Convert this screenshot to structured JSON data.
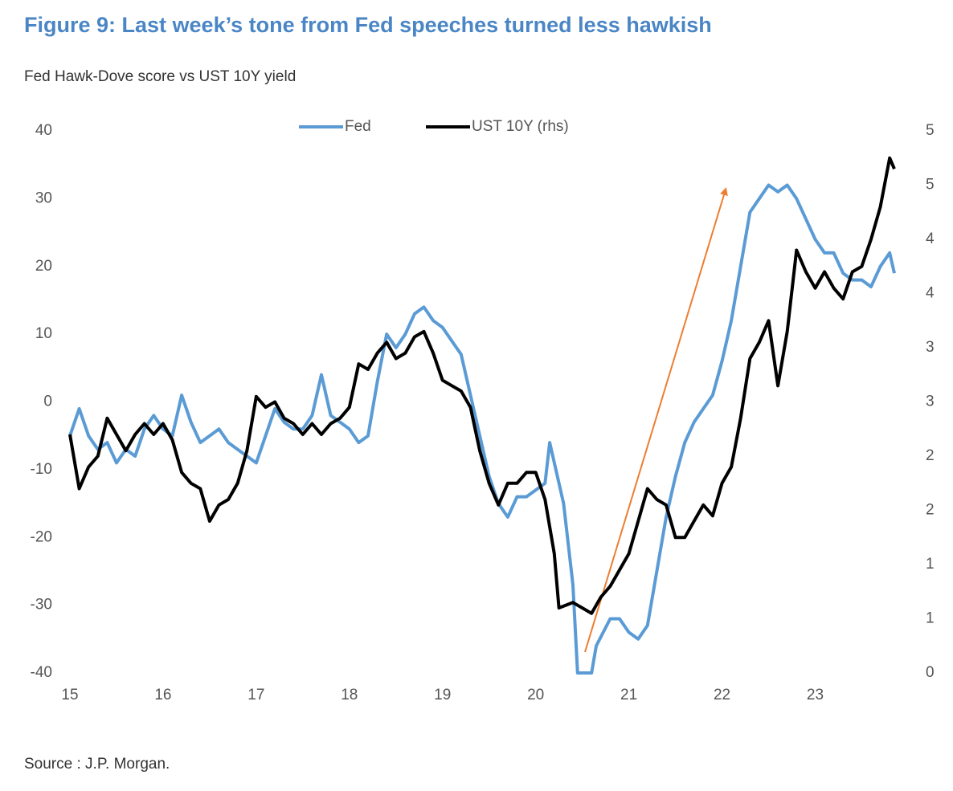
{
  "chart_data": {
    "type": "line",
    "title": "Figure 9: Last week’s tone from Fed speeches turned less hawkish",
    "subtitle": "Fed Hawk-Dove score vs UST 10Y yield",
    "source": "Source : J.P. Morgan.",
    "xlim": [
      15,
      23.85
    ],
    "xticks": [
      15,
      16,
      17,
      18,
      19,
      20,
      21,
      22,
      23
    ],
    "ylim": [
      -40,
      40
    ],
    "yticks": [
      -40,
      -30,
      -20,
      -10,
      0,
      10,
      20,
      30,
      40
    ],
    "y2lim": [
      0,
      5
    ],
    "y2ticks": [
      0,
      {
        "value": 0.5,
        "label": "1"
      },
      1,
      {
        "value": 1.5,
        "label": "2"
      },
      2,
      {
        "value": 2.5,
        "label": "3"
      },
      3,
      {
        "value": 3.5,
        "label": "4"
      },
      4,
      {
        "value": 4.5,
        "label": "5"
      },
      5
    ],
    "legend": "top",
    "series": [
      {
        "name": "Fed",
        "color": "#5b9bd5",
        "x": [
          15.0,
          15.1,
          15.2,
          15.3,
          15.4,
          15.5,
          15.6,
          15.7,
          15.8,
          15.9,
          16.0,
          16.1,
          16.2,
          16.3,
          16.4,
          16.5,
          16.6,
          16.7,
          16.8,
          16.9,
          17.0,
          17.1,
          17.2,
          17.3,
          17.4,
          17.5,
          17.6,
          17.7,
          17.8,
          17.9,
          18.0,
          18.1,
          18.2,
          18.3,
          18.4,
          18.5,
          18.6,
          18.7,
          18.8,
          18.9,
          19.0,
          19.1,
          19.2,
          19.3,
          19.4,
          19.5,
          19.6,
          19.7,
          19.8,
          19.9,
          20.0,
          20.1,
          20.15,
          20.3,
          20.4,
          20.45,
          20.6,
          20.65,
          20.8,
          20.9,
          21.0,
          21.1,
          21.2,
          21.3,
          21.4,
          21.5,
          21.6,
          21.7,
          21.8,
          21.9,
          22.0,
          22.1,
          22.2,
          22.3,
          22.4,
          22.5,
          22.6,
          22.7,
          22.8,
          22.9,
          23.0,
          23.1,
          23.2,
          23.3,
          23.4,
          23.5,
          23.6,
          23.7,
          23.8,
          23.85
        ],
        "values": [
          -5,
          -1,
          -5,
          -7,
          -6,
          -9,
          -7,
          -8,
          -4,
          -2,
          -4,
          -5,
          1,
          -3,
          -6,
          -5,
          -4,
          -6,
          -7,
          -8,
          -9,
          -5,
          -1,
          -3,
          -4,
          -4,
          -2,
          4,
          -2,
          -3,
          -4,
          -6,
          -5,
          3,
          10,
          8,
          10,
          13,
          14,
          12,
          11,
          9,
          7,
          1,
          -5,
          -11,
          -15,
          -17,
          -14,
          -14,
          -13,
          -12,
          -6,
          -15,
          -27,
          -40,
          -40,
          -36,
          -32,
          -32,
          -34,
          -35,
          -33,
          -25,
          -17,
          -11,
          -6,
          -3,
          -1,
          1,
          6,
          12,
          20,
          28,
          30,
          32,
          31,
          32,
          30,
          27,
          24,
          22,
          22,
          19,
          18,
          18,
          17,
          20,
          22,
          19
        ]
      },
      {
        "name": "UST 10Y (rhs)",
        "color": "#000000",
        "axis": "y2",
        "x": [
          15.0,
          15.1,
          15.2,
          15.3,
          15.4,
          15.5,
          15.6,
          15.7,
          15.8,
          15.9,
          16.0,
          16.1,
          16.2,
          16.3,
          16.4,
          16.5,
          16.6,
          16.7,
          16.8,
          16.9,
          17.0,
          17.1,
          17.2,
          17.3,
          17.4,
          17.5,
          17.6,
          17.7,
          17.8,
          17.9,
          18.0,
          18.1,
          18.2,
          18.3,
          18.4,
          18.5,
          18.6,
          18.7,
          18.8,
          18.9,
          19.0,
          19.1,
          19.2,
          19.3,
          19.4,
          19.5,
          19.6,
          19.7,
          19.8,
          19.9,
          20.0,
          20.1,
          20.2,
          20.25,
          20.4,
          20.5,
          20.6,
          20.7,
          20.8,
          20.9,
          21.0,
          21.1,
          21.2,
          21.3,
          21.4,
          21.5,
          21.6,
          21.7,
          21.8,
          21.9,
          22.0,
          22.1,
          22.2,
          22.3,
          22.4,
          22.5,
          22.6,
          22.7,
          22.8,
          22.9,
          23.0,
          23.1,
          23.2,
          23.3,
          23.4,
          23.5,
          23.6,
          23.7,
          23.8,
          23.85
        ],
        "values": [
          2.2,
          1.7,
          1.9,
          2.0,
          2.35,
          2.2,
          2.05,
          2.2,
          2.3,
          2.2,
          2.3,
          2.15,
          1.85,
          1.75,
          1.7,
          1.4,
          1.55,
          1.6,
          1.75,
          2.05,
          2.55,
          2.45,
          2.5,
          2.35,
          2.3,
          2.2,
          2.3,
          2.2,
          2.3,
          2.35,
          2.45,
          2.85,
          2.8,
          2.95,
          3.05,
          2.9,
          2.95,
          3.1,
          3.15,
          2.95,
          2.7,
          2.65,
          2.6,
          2.45,
          2.05,
          1.75,
          1.55,
          1.75,
          1.75,
          1.85,
          1.85,
          1.6,
          1.1,
          0.6,
          0.65,
          0.6,
          0.55,
          0.7,
          0.8,
          0.95,
          1.1,
          1.4,
          1.7,
          1.6,
          1.55,
          1.25,
          1.25,
          1.4,
          1.55,
          1.45,
          1.75,
          1.9,
          2.35,
          2.9,
          3.05,
          3.25,
          2.65,
          3.15,
          3.9,
          3.7,
          3.55,
          3.7,
          3.55,
          3.45,
          3.7,
          3.75,
          4.0,
          4.3,
          4.75,
          4.65
        ]
      }
    ]
  }
}
